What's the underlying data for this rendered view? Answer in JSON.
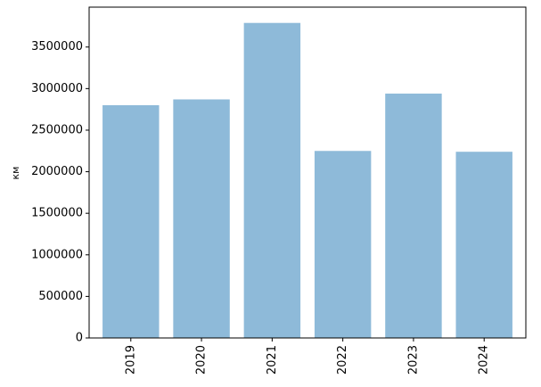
{
  "chart_data": {
    "type": "bar",
    "ylabel": "км",
    "categories": [
      "2019",
      "2020",
      "2021",
      "2022",
      "2023",
      "2024"
    ],
    "values": [
      2800000,
      2870000,
      3790000,
      2250000,
      2940000,
      2240000
    ],
    "color": "#8ebad9",
    "ylim": [
      0,
      3980000
    ],
    "yticks": [
      0,
      500000,
      1000000,
      1500000,
      2000000,
      2500000,
      3000000,
      3500000
    ]
  }
}
